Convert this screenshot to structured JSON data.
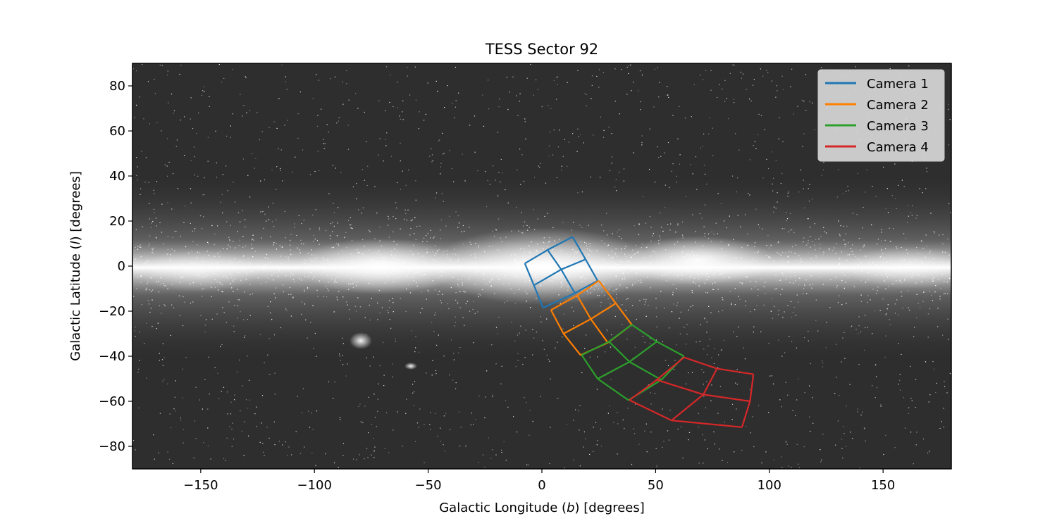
{
  "chart_data": {
    "type": "line",
    "title": "TESS Sector 92",
    "xlabel_pre": "Galactic Longitude (",
    "xlabel_sym": "b",
    "xlabel_post": ") [degrees]",
    "ylabel_pre": "Galactic Latitude (",
    "ylabel_sym": "l",
    "ylabel_post": ") [degrees]",
    "xlim": [
      -180,
      180
    ],
    "ylim": [
      -90,
      90
    ],
    "xticks": [
      -150,
      -100,
      -50,
      0,
      50,
      100,
      150
    ],
    "xtick_labels": [
      "−150",
      "−100",
      "−50",
      "0",
      "50",
      "100",
      "150"
    ],
    "yticks": [
      -80,
      -60,
      -40,
      -20,
      0,
      20,
      40,
      60,
      80
    ],
    "ytick_labels": [
      "−80",
      "−60",
      "−40",
      "−20",
      "0",
      "20",
      "40",
      "60",
      "80"
    ],
    "background": "grayscale all-sky star map with bright Milky Way band along latitude 0",
    "legend_position": "top-right",
    "series": [
      {
        "name": "Camera 1",
        "color": "#1f77b4",
        "grid": [
          [
            [
              -7.5,
              1.2
            ],
            [
              2.5,
              7.2
            ],
            [
              13.5,
              13.0
            ]
          ],
          [
            [
              -3.5,
              -8.5
            ],
            [
              8.5,
              -1.5
            ],
            [
              19.2,
              3.0
            ]
          ],
          [
            [
              0.5,
              -18.5
            ],
            [
              14.5,
              -12.0
            ],
            [
              24.5,
              -6.5
            ]
          ]
        ]
      },
      {
        "name": "Camera 2",
        "color": "#ff7f00",
        "grid": [
          [
            [
              4.0,
              -19.5
            ],
            [
              15.5,
              -13.0
            ],
            [
              25.0,
              -6.5
            ]
          ],
          [
            [
              9.5,
              -30.0
            ],
            [
              21.5,
              -23.5
            ],
            [
              32.5,
              -16.5
            ]
          ],
          [
            [
              17.0,
              -39.5
            ],
            [
              29.0,
              -34.0
            ],
            [
              39.5,
              -26.0
            ]
          ]
        ]
      },
      {
        "name": "Camera 3",
        "color": "#2ca02c",
        "grid": [
          [
            [
              17.5,
              -39.5
            ],
            [
              29.5,
              -33.5
            ],
            [
              39.5,
              -26.0
            ]
          ],
          [
            [
              24.5,
              -50.0
            ],
            [
              38.5,
              -42.5
            ],
            [
              50.5,
              -33.5
            ]
          ],
          [
            [
              38.0,
              -59.5
            ],
            [
              52.5,
              -50.5
            ],
            [
              62.5,
              -40.0
            ]
          ]
        ]
      },
      {
        "name": "Camera 4",
        "color": "#d62728",
        "grid": [
          [
            [
              62.5,
              -40.5
            ],
            [
              77.0,
              -45.5
            ],
            [
              93.0,
              -48.0
            ]
          ],
          [
            [
              50.5,
              -50.5
            ],
            [
              71.0,
              -57.0
            ],
            [
              91.5,
              -60.0
            ]
          ],
          [
            [
              38.5,
              -59.5
            ],
            [
              57.0,
              -68.5
            ],
            [
              88.0,
              -71.5
            ]
          ]
        ]
      }
    ]
  }
}
